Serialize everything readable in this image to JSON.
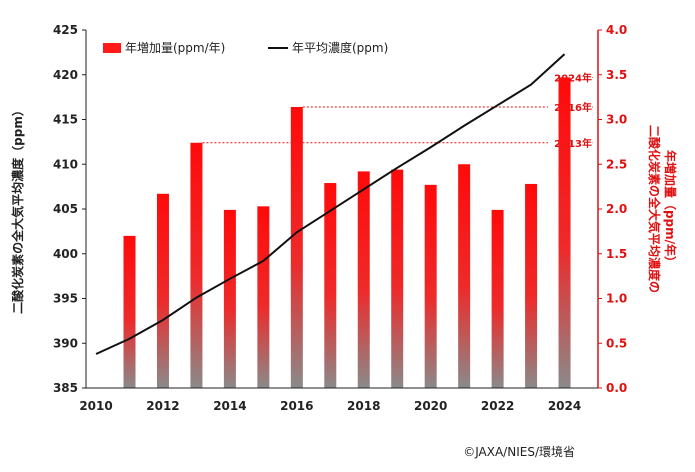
{
  "chart_data": {
    "type": "bar",
    "y_left_label": "二酸化炭素の全大気平均濃度（ppm）",
    "y_right_label": [
      "二酸化炭素の全大気平均濃度の",
      "年増加量（ppm/年）"
    ],
    "ylim_left": [
      385,
      425
    ],
    "ylim_right": [
      0,
      4
    ],
    "left_ticks": [
      385,
      390,
      395,
      400,
      405,
      410,
      415,
      420,
      425
    ],
    "right_ticks": [
      "0.0",
      "0.5",
      "1.0",
      "1.5",
      "2.0",
      "2.5",
      "3.0",
      "3.5",
      "4.0"
    ],
    "x_ticks": [
      2010,
      2012,
      2014,
      2016,
      2018,
      2020,
      2022,
      2024
    ],
    "series": [
      {
        "name": "年増加量(ppm/年)",
        "kind": "bar",
        "axis": "right",
        "color": "#ff1a1a",
        "x": [
          2011,
          2012,
          2013,
          2014,
          2015,
          2016,
          2017,
          2018,
          2019,
          2020,
          2021,
          2022,
          2023,
          2024
        ],
        "values": [
          1.7,
          2.17,
          2.74,
          1.99,
          2.03,
          3.14,
          2.29,
          2.42,
          2.44,
          2.27,
          2.5,
          1.99,
          2.28,
          3.47
        ]
      },
      {
        "name": "年平均濃度(ppm)",
        "kind": "line",
        "axis": "left",
        "color": "#111111",
        "x": [
          2010,
          2011,
          2012,
          2013,
          2014,
          2015,
          2016,
          2017,
          2018,
          2019,
          2020,
          2021,
          2022,
          2023,
          2024
        ],
        "values": [
          388.8,
          390.5,
          392.6,
          395.1,
          397.2,
          399.2,
          402.4,
          404.8,
          407.2,
          409.6,
          411.9,
          414.3,
          416.6,
          418.9,
          422.3
        ]
      }
    ],
    "annotations": [
      {
        "label": "2024年",
        "year": 2024
      },
      {
        "label": "2016年",
        "year": 2016
      },
      {
        "label": "2013年",
        "year": 2013
      }
    ]
  },
  "credit": "©JAXA/NIES/環境省"
}
